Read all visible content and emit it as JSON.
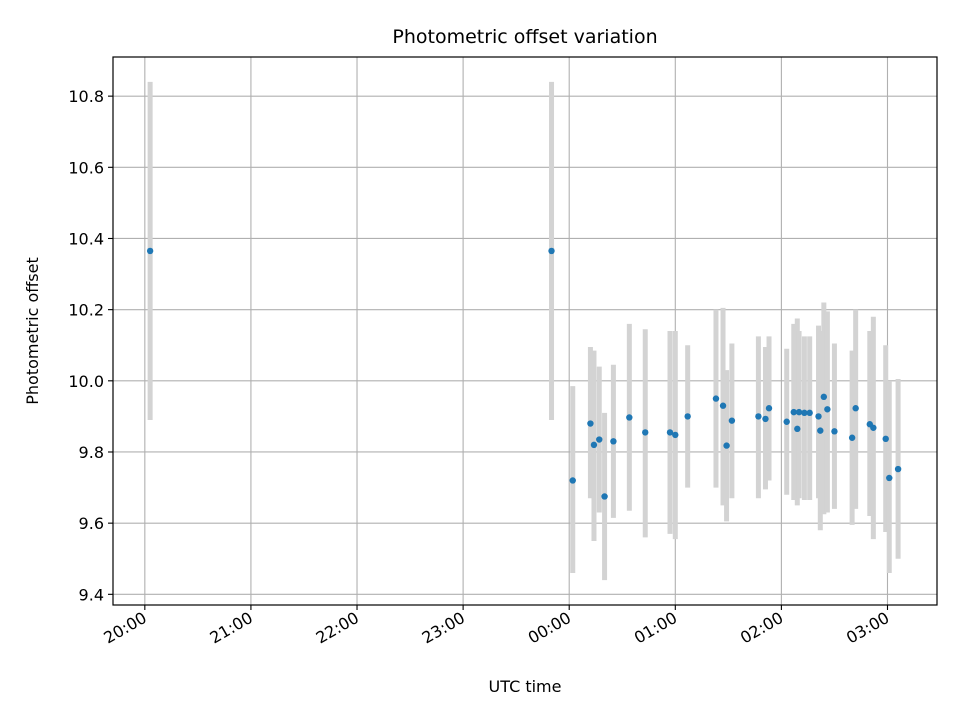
{
  "chart_data": {
    "type": "scatter",
    "title": "Photometric offset variation",
    "xlabel": "UTC time",
    "ylabel": "Photometric offset",
    "x_axis_type": "time",
    "xlim": [
      "19:42",
      "03:28"
    ],
    "ylim": [
      9.37,
      10.91
    ],
    "grid": true,
    "x_ticks": [
      "20:00",
      "21:00",
      "22:00",
      "23:00",
      "00:00",
      "01:00",
      "02:00",
      "03:00"
    ],
    "y_ticks": [
      "9.4",
      "9.6",
      "9.8",
      "10.0",
      "10.2",
      "10.4",
      "10.6",
      "10.8"
    ],
    "colors": {
      "point": "#1f77b4",
      "error_bar": "#d3d3d3",
      "grid": "#b0b0b0"
    },
    "points": [
      {
        "time": "20:03",
        "y": 10.365,
        "err_low": 9.89,
        "err_high": 10.84
      },
      {
        "time": "23:50",
        "y": 10.365,
        "err_low": 9.89,
        "err_high": 10.84
      },
      {
        "time": "00:02",
        "y": 9.72,
        "err_low": 9.46,
        "err_high": 9.985
      },
      {
        "time": "00:12",
        "y": 9.88,
        "err_low": 9.67,
        "err_high": 10.095
      },
      {
        "time": "00:14",
        "y": 9.82,
        "err_low": 9.55,
        "err_high": 10.085
      },
      {
        "time": "00:17",
        "y": 9.835,
        "err_low": 9.63,
        "err_high": 10.04
      },
      {
        "time": "00:20",
        "y": 9.675,
        "err_low": 9.44,
        "err_high": 9.91
      },
      {
        "time": "00:25",
        "y": 9.83,
        "err_low": 9.615,
        "err_high": 10.045
      },
      {
        "time": "00:34",
        "y": 9.897,
        "err_low": 9.635,
        "err_high": 10.16
      },
      {
        "time": "00:43",
        "y": 9.855,
        "err_low": 9.56,
        "err_high": 10.145
      },
      {
        "time": "00:57",
        "y": 9.855,
        "err_low": 9.57,
        "err_high": 10.14
      },
      {
        "time": "01:00",
        "y": 9.848,
        "err_low": 9.555,
        "err_high": 10.14
      },
      {
        "time": "01:07",
        "y": 9.9,
        "err_low": 9.7,
        "err_high": 10.1
      },
      {
        "time": "01:23",
        "y": 9.95,
        "err_low": 9.7,
        "err_high": 10.2
      },
      {
        "time": "01:27",
        "y": 9.93,
        "err_low": 9.65,
        "err_high": 10.205
      },
      {
        "time": "01:29",
        "y": 9.818,
        "err_low": 9.605,
        "err_high": 10.03
      },
      {
        "time": "01:32",
        "y": 9.888,
        "err_low": 9.67,
        "err_high": 10.105
      },
      {
        "time": "01:47",
        "y": 9.9,
        "err_low": 9.67,
        "err_high": 10.125
      },
      {
        "time": "01:51",
        "y": 9.893,
        "err_low": 9.695,
        "err_high": 10.095
      },
      {
        "time": "01:53",
        "y": 9.923,
        "err_low": 9.72,
        "err_high": 10.125
      },
      {
        "time": "02:03",
        "y": 9.885,
        "err_low": 9.68,
        "err_high": 10.09
      },
      {
        "time": "02:07",
        "y": 9.912,
        "err_low": 9.665,
        "err_high": 10.16
      },
      {
        "time": "02:09",
        "y": 9.865,
        "err_low": 9.65,
        "err_high": 10.175
      },
      {
        "time": "02:10",
        "y": 9.912,
        "err_low": 9.67,
        "err_high": 10.14
      },
      {
        "time": "02:13",
        "y": 9.91,
        "err_low": 9.665,
        "err_high": 10.125
      },
      {
        "time": "02:16",
        "y": 9.91,
        "err_low": 9.665,
        "err_high": 10.125
      },
      {
        "time": "02:21",
        "y": 9.9,
        "err_low": 9.67,
        "err_high": 10.155
      },
      {
        "time": "02:22",
        "y": 9.86,
        "err_low": 9.58,
        "err_high": 10.14
      },
      {
        "time": "02:24",
        "y": 9.955,
        "err_low": 9.625,
        "err_high": 10.22
      },
      {
        "time": "02:26",
        "y": 9.92,
        "err_low": 9.63,
        "err_high": 10.195
      },
      {
        "time": "02:30",
        "y": 9.858,
        "err_low": 9.64,
        "err_high": 10.105
      },
      {
        "time": "02:40",
        "y": 9.84,
        "err_low": 9.595,
        "err_high": 10.085
      },
      {
        "time": "02:42",
        "y": 9.923,
        "err_low": 9.64,
        "err_high": 10.2
      },
      {
        "time": "02:50",
        "y": 9.878,
        "err_low": 9.62,
        "err_high": 10.14
      },
      {
        "time": "02:52",
        "y": 9.868,
        "err_low": 9.555,
        "err_high": 10.18
      },
      {
        "time": "02:59",
        "y": 9.837,
        "err_low": 9.575,
        "err_high": 10.1
      },
      {
        "time": "03:01",
        "y": 9.727,
        "err_low": 9.46,
        "err_high": 10.0
      },
      {
        "time": "03:06",
        "y": 9.752,
        "err_low": 9.5,
        "err_high": 10.005
      }
    ]
  }
}
